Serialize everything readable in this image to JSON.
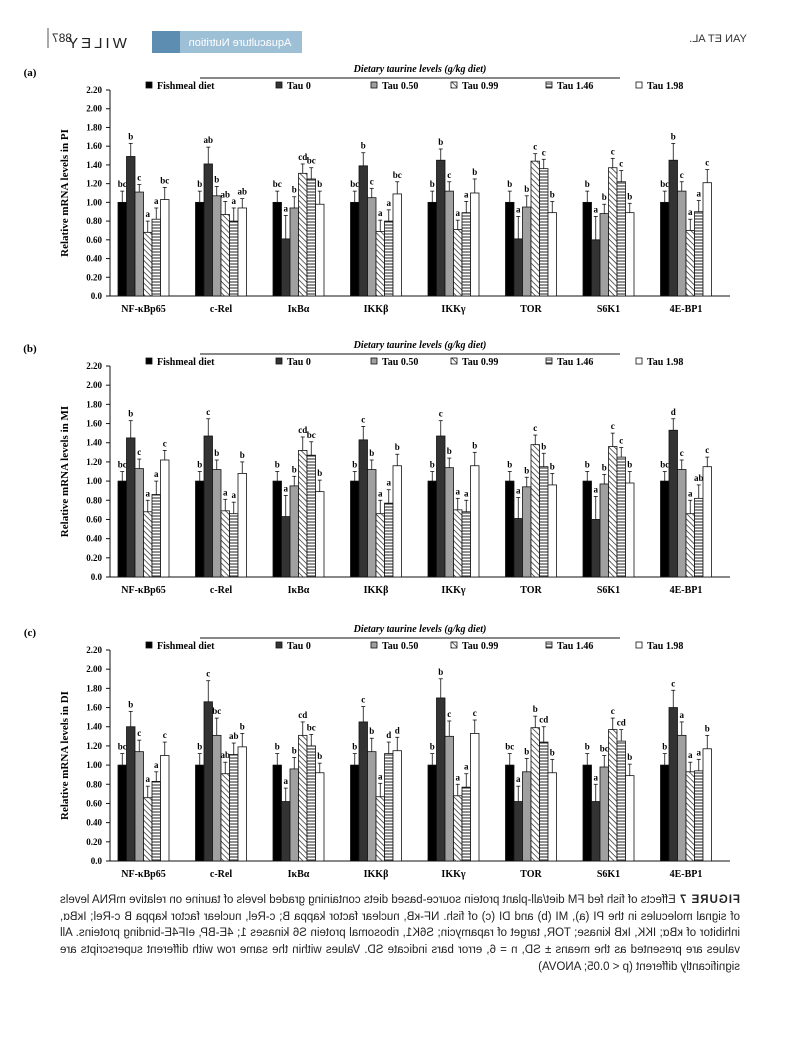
{
  "header": {
    "page_number": "887",
    "publisher": "WILEY",
    "journal": "Aquaculture Nutrition",
    "running_head": "YAN ET AL."
  },
  "figure": {
    "caption_label": "FIGURE 7",
    "caption_text": "Effects of fish fed FM diet/all-plant protein source-based diets containing graded levels of taurine on relative mRNA levels of signal molecules in the PI (a), MI (b) and DI (c) of fish. NF-κB, nuclear factor kappa B; c-Rel, nuclear factor kappa B c-Rel; IκBα, inhibitor of κBα; IKK, IκB kinase; TOR, target of rapamycin; S6K1, ribosomal protein S6 kinases 1; 4E-BP, eIF4E-binding proteins. All values are presented as the means ± SD, n = 6, error bars indicate SD. Values within the same row with different superscripts are significantly different (p < 0.05; ANOVA)"
  },
  "colors": {
    "fishmeal": "#000000",
    "tau0": "#333333",
    "tau050": "#a0a0a0",
    "tau099": "#ffffff",
    "tau146": "#ffffff",
    "tau198": "#ffffff"
  },
  "chart_data": [
    {
      "type": "bar",
      "panel": "(a)",
      "ylabel": "Relative mRNA levels in PI",
      "legend_title": "Dietary taurine levels (g/kg diet)",
      "legend_fishmeal": "Fishmeal diet",
      "categories": [
        "NF-κBp65",
        "c-Rel",
        "IκBα",
        "IKKβ",
        "IKKγ",
        "TOR",
        "S6K1",
        "4E-BP1"
      ],
      "ylim": [
        0,
        2.2
      ],
      "yticks": [
        "0.0",
        "0.20",
        "0.40",
        "0.60",
        "0.80",
        "1.00",
        "1.20",
        "1.40",
        "1.60",
        "1.80",
        "2.00",
        "2.20"
      ],
      "series": [
        {
          "name": "Fishmeal diet",
          "values": [
            1.0,
            1.0,
            1.0,
            1.0,
            1.0,
            1.0,
            1.0,
            1.0
          ],
          "errors": [
            0.12,
            0.12,
            0.12,
            0.12,
            0.12,
            0.12,
            0.12,
            0.12
          ],
          "letters": [
            "bc",
            "b",
            "bc",
            "bc",
            "b",
            "b",
            "b",
            "bc"
          ]
        },
        {
          "name": "Tau 0",
          "values": [
            1.49,
            1.41,
            0.61,
            1.39,
            1.45,
            0.61,
            0.6,
            1.45
          ],
          "errors": [
            0.14,
            0.18,
            0.25,
            0.14,
            0.12,
            0.24,
            0.25,
            0.18
          ],
          "letters": [
            "b",
            "ab",
            "a",
            "b",
            "b",
            "a",
            "a",
            "b"
          ]
        },
        {
          "name": "Tau 0.50",
          "values": [
            1.11,
            1.07,
            0.94,
            1.05,
            1.12,
            0.95,
            0.88,
            1.12
          ],
          "errors": [
            0.08,
            0.1,
            0.12,
            0.1,
            0.1,
            0.12,
            0.1,
            0.1
          ],
          "letters": [
            "c",
            "b",
            "b",
            "c",
            "c",
            "b",
            "b",
            "c"
          ]
        },
        {
          "name": "Tau 0.99",
          "values": [
            0.68,
            0.87,
            1.31,
            0.69,
            0.71,
            1.44,
            1.37,
            0.7
          ],
          "errors": [
            0.12,
            0.14,
            0.1,
            0.12,
            0.1,
            0.08,
            0.1,
            0.12
          ],
          "letters": [
            "a",
            "ab",
            "cd",
            "a",
            "a",
            "c",
            "c",
            "a"
          ]
        },
        {
          "name": "Tau 1.46",
          "values": [
            0.82,
            0.8,
            1.25,
            0.8,
            0.89,
            1.36,
            1.22,
            0.9
          ],
          "errors": [
            0.12,
            0.14,
            0.12,
            0.12,
            0.12,
            0.1,
            0.12,
            0.12
          ],
          "letters": [
            "a",
            "a",
            "bc",
            "a",
            "a",
            "c",
            "c",
            "a"
          ]
        },
        {
          "name": "Tau 1.98",
          "values": [
            1.03,
            0.94,
            0.98,
            1.09,
            1.1,
            0.89,
            0.89,
            1.21
          ],
          "errors": [
            0.13,
            0.1,
            0.14,
            0.13,
            0.15,
            0.12,
            0.1,
            0.14
          ],
          "letters": [
            "bc",
            "ab",
            "b",
            "bc",
            "b",
            "b",
            "b",
            "c"
          ]
        }
      ]
    },
    {
      "type": "bar",
      "panel": "(b)",
      "ylabel": "Relative mRNA levels in MI",
      "legend_title": "Dietary taurine levels (g/kg diet)",
      "legend_fishmeal": "Fishmeal diet",
      "categories": [
        "NF-κBp65",
        "c-Rel",
        "IκBα",
        "IKKβ",
        "IKKγ",
        "TOR",
        "S6K1",
        "4E-BP1"
      ],
      "ylim": [
        0,
        2.2
      ],
      "yticks": [
        "0.0",
        "0.20",
        "0.40",
        "0.60",
        "0.80",
        "1.00",
        "1.20",
        "1.40",
        "1.60",
        "1.80",
        "2.00",
        "2.20"
      ],
      "series": [
        {
          "name": "Fishmeal diet",
          "values": [
            1.0,
            1.0,
            1.0,
            1.0,
            1.0,
            1.0,
            1.0,
            1.0
          ],
          "errors": [
            0.1,
            0.1,
            0.1,
            0.1,
            0.1,
            0.1,
            0.1,
            0.1
          ],
          "letters": [
            "bc",
            "b",
            "b",
            "b",
            "b",
            "b",
            "b",
            "bc"
          ]
        },
        {
          "name": "Tau 0",
          "values": [
            1.45,
            1.47,
            0.63,
            1.43,
            1.47,
            0.61,
            0.6,
            1.53
          ],
          "errors": [
            0.18,
            0.18,
            0.22,
            0.14,
            0.16,
            0.22,
            0.24,
            0.12
          ],
          "letters": [
            "b",
            "c",
            "a",
            "c",
            "c",
            "a",
            "a",
            "d"
          ]
        },
        {
          "name": "Tau 0.50",
          "values": [
            1.13,
            1.12,
            0.95,
            1.12,
            1.14,
            0.94,
            0.97,
            1.12
          ],
          "errors": [
            0.1,
            0.1,
            0.1,
            0.1,
            0.1,
            0.1,
            0.1,
            0.1
          ],
          "letters": [
            "c",
            "b",
            "b",
            "b",
            "b",
            "b",
            "b",
            "c"
          ]
        },
        {
          "name": "Tau 0.99",
          "values": [
            0.68,
            0.69,
            1.32,
            0.66,
            0.7,
            1.38,
            1.36,
            0.66
          ],
          "errors": [
            0.12,
            0.12,
            0.14,
            0.14,
            0.12,
            0.1,
            0.14,
            0.14
          ],
          "letters": [
            "a",
            "a",
            "cd",
            "a",
            "a",
            "c",
            "c",
            "a"
          ]
        },
        {
          "name": "Tau 1.46",
          "values": [
            0.86,
            0.66,
            1.27,
            0.77,
            0.68,
            1.15,
            1.25,
            0.82
          ],
          "errors": [
            0.14,
            0.12,
            0.14,
            0.14,
            0.12,
            0.14,
            0.1,
            0.14
          ],
          "letters": [
            "a",
            "a",
            "bc",
            "a",
            "a",
            "b",
            "c",
            "ab"
          ]
        },
        {
          "name": "Tau 1.98",
          "values": [
            1.22,
            1.08,
            0.89,
            1.16,
            1.16,
            0.96,
            0.98,
            1.15
          ],
          "errors": [
            0.1,
            0.12,
            0.12,
            0.12,
            0.14,
            0.12,
            0.12,
            0.1
          ],
          "letters": [
            "c",
            "b",
            "b",
            "b",
            "b",
            "b",
            "b",
            "c"
          ]
        }
      ]
    },
    {
      "type": "bar",
      "panel": "(c)",
      "ylabel": "Relative mRNA levels in DI",
      "legend_title": "Dietary taurine levels (g/kg diet)",
      "legend_fishmeal": "Fishmeal diet",
      "categories": [
        "NF-κBp65",
        "c-Rel",
        "IκBα",
        "IKKβ",
        "IKKγ",
        "TOR",
        "S6K1",
        "4E-BP1"
      ],
      "ylim": [
        0,
        2.2
      ],
      "yticks": [
        "0.0",
        "0.20",
        "0.40",
        "0.60",
        "0.80",
        "1.00",
        "1.20",
        "1.40",
        "1.60",
        "1.80",
        "2.00",
        "2.20"
      ],
      "series": [
        {
          "name": "Fishmeal diet",
          "values": [
            1.0,
            1.0,
            1.0,
            1.0,
            1.0,
            1.0,
            1.0,
            1.0
          ],
          "errors": [
            0.12,
            0.12,
            0.12,
            0.12,
            0.12,
            0.12,
            0.12,
            0.12
          ],
          "letters": [
            "bc",
            "b",
            "b",
            "b",
            "b",
            "bc",
            "b",
            "b"
          ]
        },
        {
          "name": "Tau 0",
          "values": [
            1.4,
            1.66,
            0.62,
            1.45,
            1.7,
            0.62,
            0.62,
            1.6
          ],
          "errors": [
            0.16,
            0.22,
            0.14,
            0.16,
            0.2,
            0.16,
            0.18,
            0.18
          ],
          "letters": [
            "b",
            "c",
            "a",
            "c",
            "b",
            "a",
            "a",
            "c"
          ]
        },
        {
          "name": "Tau 0.50",
          "values": [
            1.14,
            1.31,
            0.96,
            1.14,
            1.3,
            0.93,
            0.98,
            1.31
          ],
          "errors": [
            0.12,
            0.18,
            0.12,
            0.14,
            0.16,
            0.14,
            0.12,
            0.14
          ],
          "letters": [
            "c",
            "bc",
            "b",
            "b",
            "c",
            "b",
            "bc",
            "a"
          ]
        },
        {
          "name": "Tau 0.99",
          "values": [
            0.66,
            0.91,
            1.31,
            0.67,
            0.68,
            1.39,
            1.37,
            0.93
          ],
          "errors": [
            0.12,
            0.12,
            0.14,
            0.14,
            0.12,
            0.12,
            0.12,
            0.1
          ],
          "letters": [
            "a",
            "ab",
            "cd",
            "a",
            "a",
            "b",
            "c",
            "a"
          ]
        },
        {
          "name": "Tau 1.46",
          "values": [
            0.83,
            1.11,
            1.2,
            1.12,
            0.77,
            1.24,
            1.25,
            0.94
          ],
          "errors": [
            0.1,
            0.12,
            0.12,
            0.12,
            0.14,
            0.16,
            0.12,
            0.12
          ],
          "letters": [
            "a",
            "ab",
            "bc",
            "d",
            "a",
            "cd",
            "cd",
            "a"
          ]
        },
        {
          "name": "Tau 1.98",
          "values": [
            1.1,
            1.19,
            0.92,
            1.15,
            1.33,
            0.92,
            0.89,
            1.17
          ],
          "errors": [
            0.14,
            0.14,
            0.1,
            0.14,
            0.14,
            0.14,
            0.12,
            0.14
          ],
          "letters": [
            "c",
            "b",
            "b",
            "d",
            "c",
            "b",
            "b",
            "b"
          ]
        }
      ]
    }
  ]
}
